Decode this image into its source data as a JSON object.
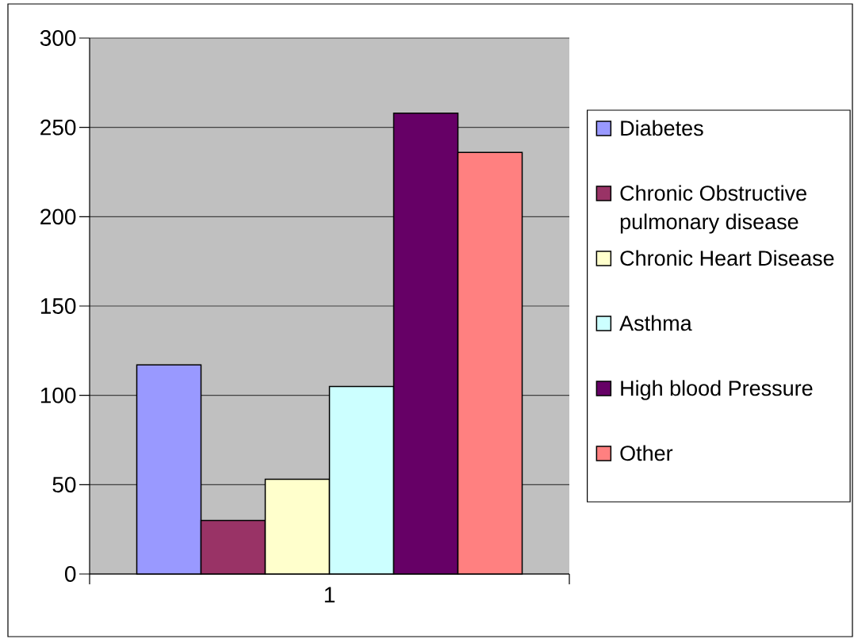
{
  "chart_data": {
    "type": "bar",
    "categories": [
      "1"
    ],
    "series": [
      {
        "name": "Diabetes",
        "color": "#9999ff",
        "values": [
          117
        ]
      },
      {
        "name": "Chronic Obstructive pulmonary disease",
        "color": "#993366",
        "values": [
          30
        ]
      },
      {
        "name": "Chronic Heart Disease",
        "color": "#ffffcc",
        "values": [
          53
        ]
      },
      {
        "name": "Asthma",
        "color": "#ccffff",
        "values": [
          105
        ]
      },
      {
        "name": "High blood Pressure",
        "color": "#660066",
        "values": [
          258
        ]
      },
      {
        "name": "Other",
        "color": "#ff8080",
        "values": [
          236
        ]
      }
    ],
    "ylim": [
      0,
      300
    ],
    "yticks": [
      0,
      50,
      100,
      150,
      200,
      250,
      300
    ],
    "grid": "y",
    "legend": "right"
  }
}
